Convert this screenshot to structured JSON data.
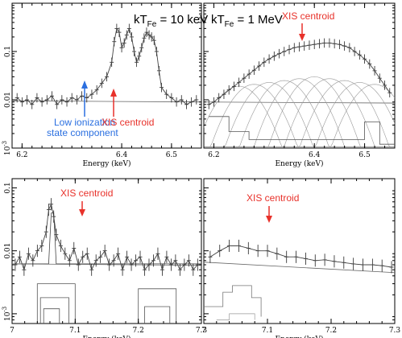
{
  "chart_data": [
    {
      "type": "line",
      "panel": "top-left",
      "xlabel": "Energy (keV)",
      "ylabel": "",
      "log_y": true,
      "xlim": [
        6.18,
        6.56
      ],
      "ylim": [
        0.001,
        1.0
      ],
      "x_ticks": [
        "6.2",
        "6.4",
        "6.5"
      ],
      "y_ticks": [
        "10^-3",
        "0.01",
        "0.1"
      ],
      "y_tick_values": [
        0.001,
        0.01,
        0.1
      ],
      "x_tick_values": [
        6.2,
        6.4,
        6.5
      ],
      "annotations": {
        "temperature": "kT",
        "temperature_sub": "Fe",
        "temperature_val": " = 10 keV",
        "xis": "XIS centroid",
        "low_ion_line1": "Low ionization",
        "low_ion_line2": "state component"
      },
      "series": [
        {
          "x": [
            6.19,
            6.2,
            6.21,
            6.22,
            6.23,
            6.24,
            6.25,
            6.26,
            6.27,
            6.28,
            6.29,
            6.3,
            6.31,
            6.32,
            6.33,
            6.34,
            6.35,
            6.36,
            6.37,
            6.38,
            6.385,
            6.39,
            6.395,
            6.4,
            6.405,
            6.41,
            6.415,
            6.42,
            6.425,
            6.43,
            6.435,
            6.44,
            6.445,
            6.45,
            6.455,
            6.46,
            6.465,
            6.47,
            6.475,
            6.48,
            6.49,
            6.5,
            6.51,
            6.52,
            6.53,
            6.54,
            6.55
          ],
          "y": [
            0.011,
            0.009,
            0.01,
            0.008,
            0.011,
            0.009,
            0.01,
            0.012,
            0.008,
            0.01,
            0.009,
            0.011,
            0.01,
            0.012,
            0.011,
            0.013,
            0.016,
            0.022,
            0.03,
            0.06,
            0.16,
            0.3,
            0.25,
            0.12,
            0.15,
            0.22,
            0.3,
            0.2,
            0.1,
            0.06,
            0.08,
            0.12,
            0.19,
            0.25,
            0.22,
            0.2,
            0.17,
            0.1,
            0.04,
            0.018,
            0.013,
            0.011,
            0.009,
            0.01,
            0.008,
            0.009,
            0.01
          ]
        }
      ]
    },
    {
      "type": "line",
      "panel": "top-right",
      "xlabel": "Energy (keV)",
      "ylabel": "",
      "log_y": true,
      "xlim": [
        6.18,
        6.56
      ],
      "ylim": [
        0.001,
        1.0
      ],
      "x_ticks": [
        "6.2",
        "6.4",
        "6.5"
      ],
      "x_tick_values": [
        6.2,
        6.4,
        6.5
      ],
      "annotations": {
        "temperature": "kT",
        "temperature_sub": "Fe",
        "temperature_val": " = 1 MeV",
        "xis": "XIS centroid"
      },
      "series": [
        {
          "x": [
            6.19,
            6.2,
            6.21,
            6.22,
            6.23,
            6.24,
            6.25,
            6.26,
            6.27,
            6.28,
            6.29,
            6.3,
            6.31,
            6.32,
            6.33,
            6.34,
            6.35,
            6.36,
            6.37,
            6.38,
            6.39,
            6.4,
            6.41,
            6.42,
            6.43,
            6.44,
            6.45,
            6.46,
            6.47,
            6.48,
            6.49,
            6.5,
            6.51,
            6.52,
            6.53,
            6.54,
            6.55
          ],
          "y": [
            0.008,
            0.009,
            0.011,
            0.013,
            0.016,
            0.019,
            0.023,
            0.028,
            0.034,
            0.041,
            0.05,
            0.06,
            0.07,
            0.08,
            0.09,
            0.1,
            0.11,
            0.12,
            0.125,
            0.13,
            0.135,
            0.14,
            0.145,
            0.15,
            0.15,
            0.145,
            0.14,
            0.13,
            0.12,
            0.1,
            0.085,
            0.07,
            0.055,
            0.04,
            0.028,
            0.02,
            0.014
          ]
        }
      ]
    },
    {
      "type": "line",
      "panel": "bottom-left",
      "xlabel": "Energy (keV)",
      "ylabel": "",
      "log_y": true,
      "xlim": [
        7.0,
        7.3
      ],
      "ylim": [
        0.0007,
        0.14
      ],
      "x_ticks": [
        "7",
        "7.1",
        "7.2",
        "7.3"
      ],
      "y_ticks": [
        "10^-3",
        "0.01",
        "0.1"
      ],
      "y_tick_values": [
        0.001,
        0.01,
        0.1
      ],
      "x_tick_values": [
        7.0,
        7.1,
        7.2,
        7.3
      ],
      "annotations": {
        "xis": "XIS centroid"
      },
      "series": [
        {
          "x": [
            7.005,
            7.012,
            7.019,
            7.026,
            7.033,
            7.04,
            7.047,
            7.054,
            7.058,
            7.062,
            7.066,
            7.07,
            7.077,
            7.084,
            7.091,
            7.098,
            7.105,
            7.112,
            7.119,
            7.126,
            7.133,
            7.14,
            7.147,
            7.154,
            7.161,
            7.168,
            7.175,
            7.182,
            7.189,
            7.196,
            7.203,
            7.21,
            7.217,
            7.224,
            7.231,
            7.238,
            7.245,
            7.252,
            7.259,
            7.266,
            7.273,
            7.28,
            7.287,
            7.294
          ],
          "y": [
            0.006,
            0.008,
            0.005,
            0.009,
            0.007,
            0.01,
            0.012,
            0.02,
            0.045,
            0.055,
            0.035,
            0.018,
            0.012,
            0.009,
            0.007,
            0.011,
            0.006,
            0.008,
            0.009,
            0.005,
            0.007,
            0.008,
            0.01,
            0.006,
            0.007,
            0.009,
            0.005,
            0.008,
            0.006,
            0.007,
            0.008,
            0.005,
            0.006,
            0.007,
            0.009,
            0.005,
            0.008,
            0.006,
            0.007,
            0.005,
            0.006,
            0.007,
            0.005,
            0.006
          ]
        }
      ]
    },
    {
      "type": "line",
      "panel": "bottom-right",
      "xlabel": "Energy (keV)",
      "ylabel": "",
      "log_y": true,
      "xlim": [
        7.0,
        7.3
      ],
      "ylim": [
        0.0007,
        0.14
      ],
      "x_ticks": [
        "7",
        "7.1",
        "7.2",
        "7.3"
      ],
      "x_tick_values": [
        7.0,
        7.1,
        7.2,
        7.3
      ],
      "annotations": {
        "xis": "XIS centroid"
      },
      "series": [
        {
          "x": [
            7.01,
            7.025,
            7.04,
            7.055,
            7.07,
            7.085,
            7.1,
            7.115,
            7.13,
            7.145,
            7.16,
            7.175,
            7.19,
            7.205,
            7.22,
            7.235,
            7.25,
            7.265,
            7.28,
            7.295
          ],
          "y": [
            0.008,
            0.01,
            0.012,
            0.012,
            0.011,
            0.01,
            0.01,
            0.009,
            0.008,
            0.008,
            0.0075,
            0.007,
            0.0072,
            0.0068,
            0.0065,
            0.0062,
            0.006,
            0.006,
            0.0058,
            0.0055
          ]
        }
      ]
    }
  ],
  "colors": {
    "axis": "#000000",
    "data": "#333333",
    "model": "#666666",
    "xis": "#e8312a",
    "low_ion": "#2a6fe0"
  }
}
